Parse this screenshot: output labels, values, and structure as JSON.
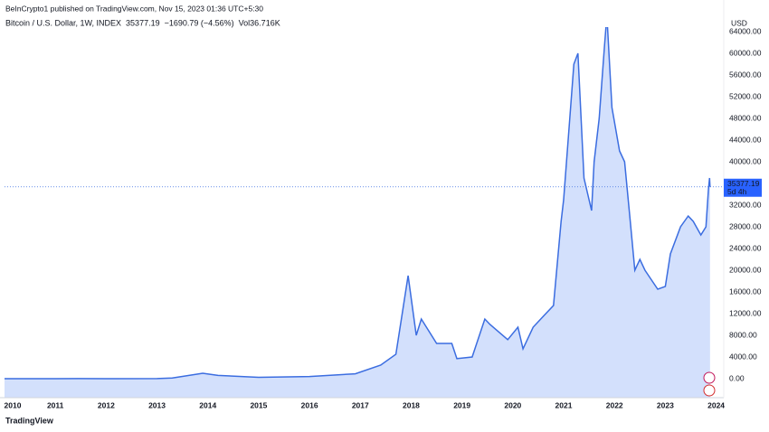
{
  "header": {
    "published": "BeInCrypto1 published on TradingView.com, Nov 15, 2023 01:36 UTC+5:30"
  },
  "legend": {
    "symbol": "Bitcoin / U.S. Dollar, 1W, INDEX",
    "change": "−1690.79 (−4.56%)",
    "volume_label": "Vol",
    "volume": "36.716K"
  },
  "currency": "USD",
  "countdown": "5d 4h",
  "footer": "TradingView",
  "chart_data": {
    "type": "area",
    "color": "#3b6de0",
    "fill": "#d3e0fc",
    "grid": false,
    "x": [
      2010.0,
      2011.0,
      2011.45,
      2012.0,
      2013.0,
      2013.3,
      2013.9,
      2014.2,
      2015.0,
      2016.0,
      2016.9,
      2017.4,
      2017.7,
      2017.94,
      2018.1,
      2018.2,
      2018.5,
      2018.8,
      2018.9,
      2019.2,
      2019.45,
      2019.55,
      2019.9,
      2020.1,
      2020.2,
      2020.4,
      2020.6,
      2020.8,
      2020.95,
      2021.0,
      2021.12,
      2021.2,
      2021.28,
      2021.4,
      2021.55,
      2021.6,
      2021.7,
      2021.8,
      2021.85,
      2021.95,
      2022.1,
      2022.2,
      2022.3,
      2022.4,
      2022.5,
      2022.6,
      2022.85,
      2023.0,
      2023.1,
      2023.3,
      2023.45,
      2023.55,
      2023.7,
      2023.8,
      2023.85,
      2023.87,
      2023.88
    ],
    "values": [
      0,
      1,
      15,
      5,
      13,
      130,
      1000,
      600,
      250,
      400,
      900,
      2500,
      4500,
      19000,
      8000,
      11000,
      6500,
      6500,
      3700,
      4000,
      11000,
      10000,
      7200,
      9500,
      5500,
      9500,
      11500,
      13500,
      29000,
      33000,
      48000,
      58000,
      60000,
      37000,
      31000,
      40000,
      48000,
      61000,
      67000,
      50000,
      42000,
      40000,
      30000,
      20000,
      22000,
      20000,
      16500,
      17000,
      23000,
      28000,
      30000,
      29000,
      26500,
      28000,
      35000,
      37000,
      35377.19
    ],
    "xlim": [
      2010,
      2024.15
    ],
    "xticks": [
      2010,
      2011,
      2012,
      2013,
      2014,
      2015,
      2016,
      2017,
      2018,
      2019,
      2020,
      2021,
      2022,
      2023,
      2024
    ],
    "ylim": [
      -3500,
      65000
    ],
    "yticks": [
      {
        "value": 0,
        "label": "0.00"
      },
      {
        "value": 4000,
        "label": "4000.00"
      },
      {
        "value": 8000,
        "label": "8000.00"
      },
      {
        "value": 12000,
        "label": "12000.00"
      },
      {
        "value": 16000,
        "label": "16000.00"
      },
      {
        "value": 20000,
        "label": "20000.00"
      },
      {
        "value": 24000,
        "label": "24000.00"
      },
      {
        "value": 28000,
        "label": "28000.00"
      },
      {
        "value": 32000,
        "label": "32000.00"
      },
      {
        "value": 40000,
        "label": "40000.00"
      },
      {
        "value": 44000,
        "label": "44000.00"
      },
      {
        "value": 48000,
        "label": "48000.00"
      },
      {
        "value": 52000,
        "label": "52000.00"
      },
      {
        "value": 56000,
        "label": "56000.00"
      },
      {
        "value": 60000,
        "label": "60000.00"
      },
      {
        "value": 64000,
        "label": "64000.00"
      }
    ]
  }
}
